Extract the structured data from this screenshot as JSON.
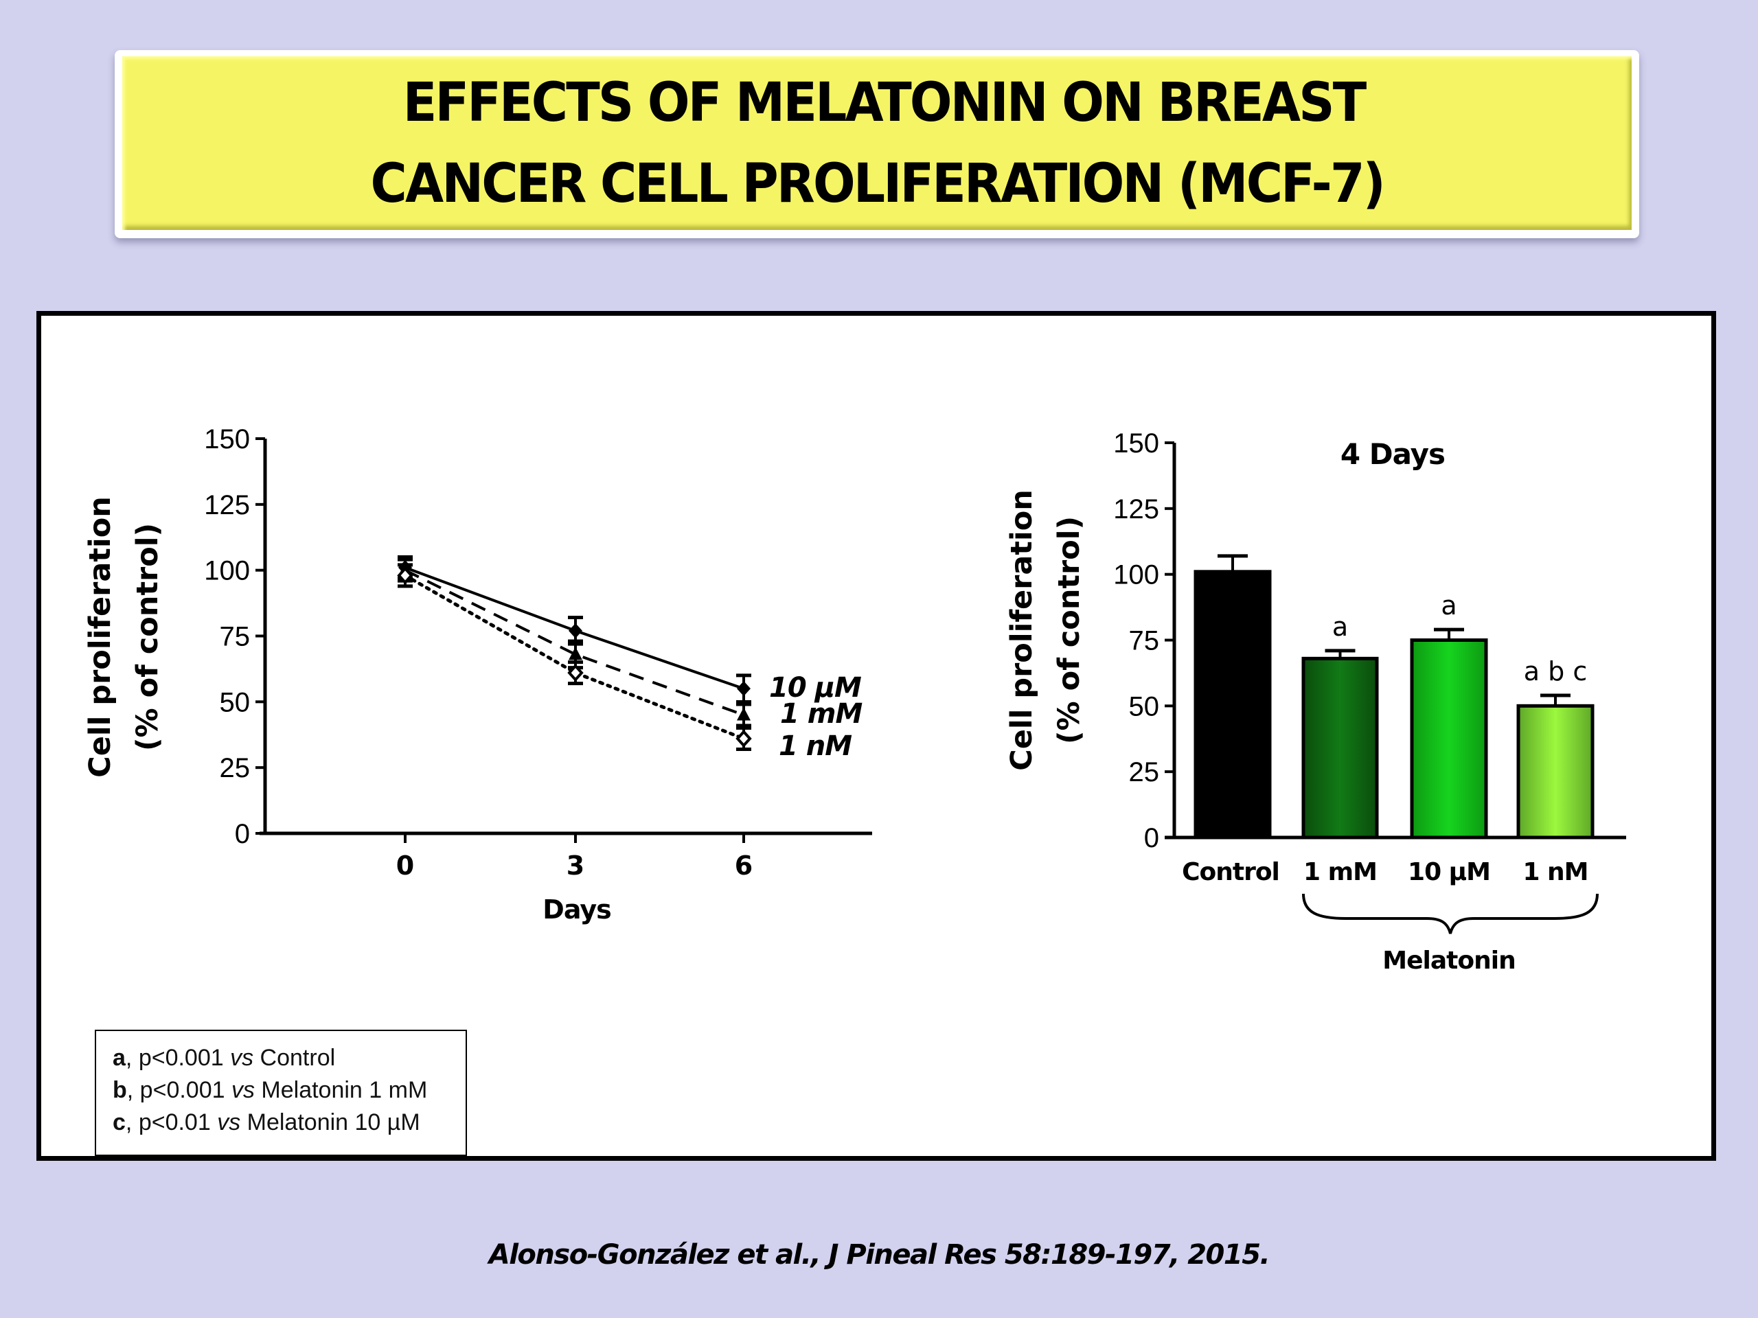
{
  "slide": {
    "title_lines": [
      "EFFECTS OF MELATONIN ON BREAST",
      "CANCER CELL PROLIFERATION (MCF-7)"
    ],
    "citation": "Alonso-González et al., J Pineal Res 58:189-197, 2015.",
    "colors": {
      "background": "#d2d1ee",
      "title_fill": "#f5f465"
    }
  },
  "significance_legend": [
    {
      "letter": "a",
      "text_pre": ", p<0.001 ",
      "vs": "vs",
      "text_post": " Control"
    },
    {
      "letter": "b",
      "text_pre": ", p<0.001 ",
      "vs": "vs",
      "text_post": " Melatonin 1 mM"
    },
    {
      "letter": "c",
      "text_pre": ", p<0.01 ",
      "vs": "vs",
      "text_post": " Melatonin 10 µM"
    }
  ],
  "chart_data": [
    {
      "type": "line",
      "title": "",
      "xlabel": "Days",
      "ylabel": [
        "Cell proliferation",
        "(% of control)"
      ],
      "x": [
        0,
        3,
        6
      ],
      "xticks": [
        "0",
        "3",
        "6"
      ],
      "xlim": [
        -3,
        8
      ],
      "ylim": [
        0,
        150
      ],
      "yticks": [
        0,
        25,
        50,
        75,
        100,
        125,
        150
      ],
      "grid": false,
      "legend_position": "right-of-endpoints",
      "series": [
        {
          "name": "10 µM",
          "line": "solid",
          "marker": "filled-diamond",
          "values": [
            101,
            77,
            55
          ],
          "error": [
            3,
            4,
            4
          ]
        },
        {
          "name": "1  mM",
          "line": "dashed",
          "marker": "filled-triangle",
          "values": [
            100,
            68,
            45
          ],
          "error": [
            3,
            4,
            3
          ]
        },
        {
          "name": "1 nM",
          "line": "dotted",
          "marker": "open-diamond",
          "values": [
            98,
            61,
            36
          ],
          "error": [
            3,
            3,
            3
          ]
        }
      ]
    },
    {
      "type": "bar",
      "title": "4 Days",
      "xlabel": "",
      "group_label": "Melatonin",
      "group_members": [
        "1 mM",
        "10 µM",
        "1 nM"
      ],
      "ylabel": [
        "Cell proliferation",
        "(% of control)"
      ],
      "categories": [
        "Control",
        "1 mM",
        "10 µM",
        "1 nM"
      ],
      "values": [
        101,
        68,
        75,
        50
      ],
      "error": [
        6,
        3,
        4,
        4
      ],
      "annotations": [
        "",
        "a",
        "a",
        "a b c"
      ],
      "colors": [
        "#000000",
        "#0e6e12",
        "#12c41a",
        "#8ff036"
      ],
      "ylim": [
        0,
        150
      ],
      "yticks": [
        0,
        25,
        50,
        75,
        100,
        125,
        150
      ],
      "grid": false
    }
  ]
}
